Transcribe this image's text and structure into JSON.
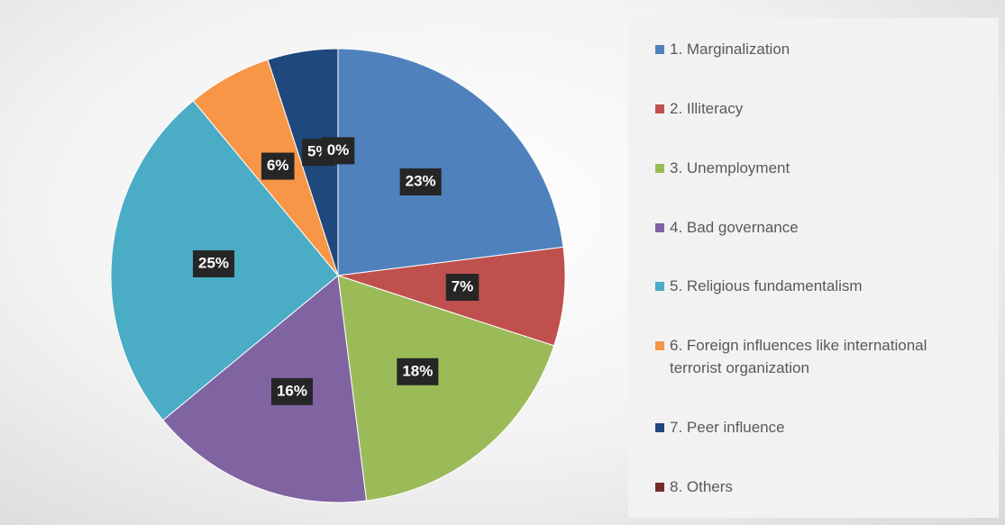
{
  "chart_data": {
    "type": "pie",
    "categories": [
      "1. Marginalization",
      "2. Illiteracy",
      "3. Unemployment",
      "4. Bad governance",
      "5. Religious fundamentalism",
      "6. Foreign influences like international terrorist organization",
      "7. Peer influence",
      "8. Others"
    ],
    "values": [
      23,
      7,
      18,
      16,
      25,
      6,
      5,
      0
    ],
    "value_labels": [
      "23%",
      "7%",
      "18%",
      "16%",
      "25%",
      "6%",
      "5%",
      "0%"
    ],
    "colors": [
      "#4f81bd",
      "#c0504d",
      "#9bbb59",
      "#8064a2",
      "#4bacc6",
      "#f79646",
      "#1f497d",
      "#772c2a"
    ],
    "legend": "right"
  }
}
